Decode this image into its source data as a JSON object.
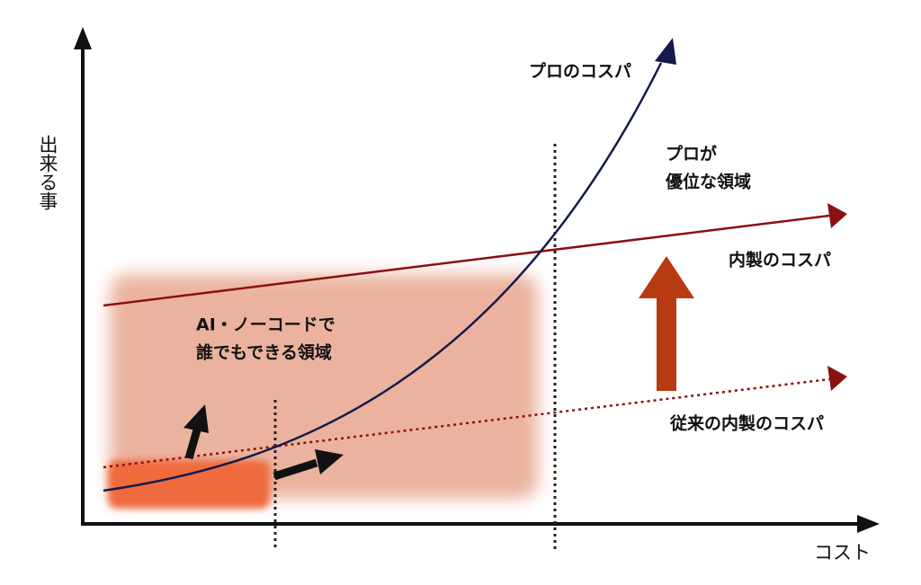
{
  "axes": {
    "y_label": "出来る事",
    "x_label": "コスト"
  },
  "labels": {
    "pro": "プロのコスパ",
    "pro_area": [
      "プロが",
      "優位な領域"
    ],
    "inhouse": "内製のコスパ",
    "ai_area": [
      "AI・ノーコードで",
      "誰でもできる領域"
    ],
    "legacy": "従来の内製のコスパ"
  }
}
